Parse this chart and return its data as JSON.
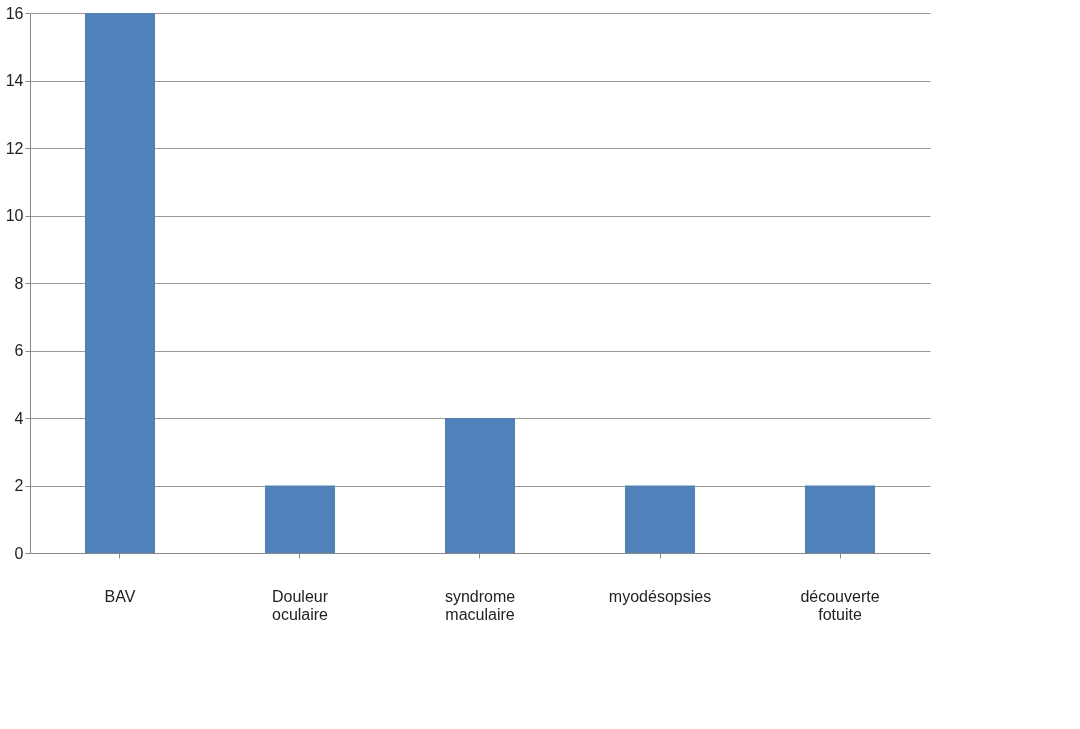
{
  "chart_data": {
    "type": "bar",
    "categories": [
      "BAV",
      "Douleur oculaire",
      "syndrome maculaire",
      "myodésopsies",
      "découverte fotuite"
    ],
    "values": [
      16,
      2,
      4,
      2,
      2
    ],
    "color": "#4f81bd",
    "ylim": [
      0,
      16
    ],
    "yticks": [
      0,
      2,
      4,
      6,
      8,
      10,
      12,
      14,
      16
    ],
    "grid": "y"
  }
}
